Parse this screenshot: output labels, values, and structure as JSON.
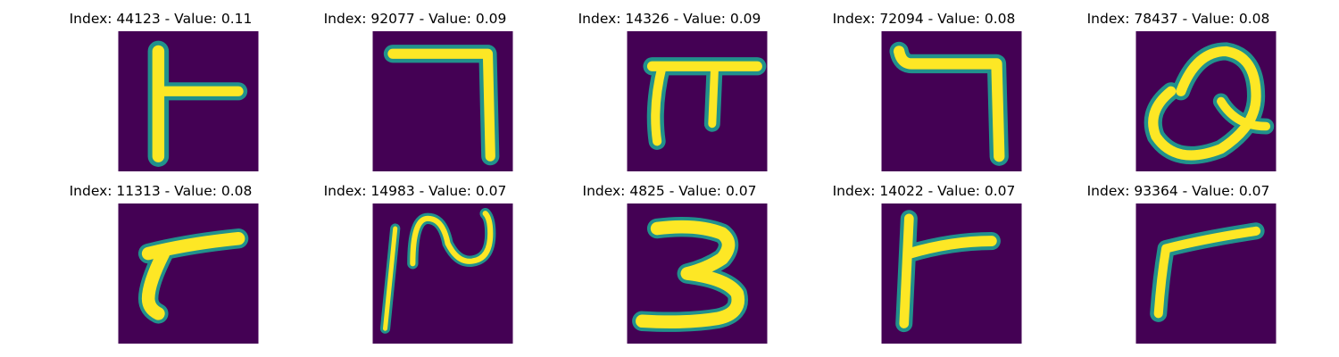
{
  "colors": {
    "background": "#440154",
    "mid": "#21918c",
    "foreground": "#fde725"
  },
  "panels": [
    {
      "title": "Index: 44123 - Value: 0.11",
      "glyph": "T-rotated-left"
    },
    {
      "title": "Index: 92077 - Value: 0.09",
      "glyph": "seven-bar"
    },
    {
      "title": "Index: 14326 - Value: 0.09",
      "glyph": "pi-shape"
    },
    {
      "title": "Index: 72094 - Value: 0.08",
      "glyph": "seven-hook"
    },
    {
      "title": "Index: 78437 - Value: 0.08",
      "glyph": "q-loop"
    },
    {
      "title": "Index: 11313 - Value: 0.08",
      "glyph": "r-shape"
    },
    {
      "title": "Index: 14983 - Value: 0.07",
      "glyph": "n-squiggle"
    },
    {
      "title": "Index: 4825 - Value: 0.07",
      "glyph": "three"
    },
    {
      "title": "Index: 14022 - Value: 0.07",
      "glyph": "T-rotated-left-2"
    },
    {
      "title": "Index: 93364 - Value: 0.07",
      "glyph": "r-thin"
    }
  ]
}
